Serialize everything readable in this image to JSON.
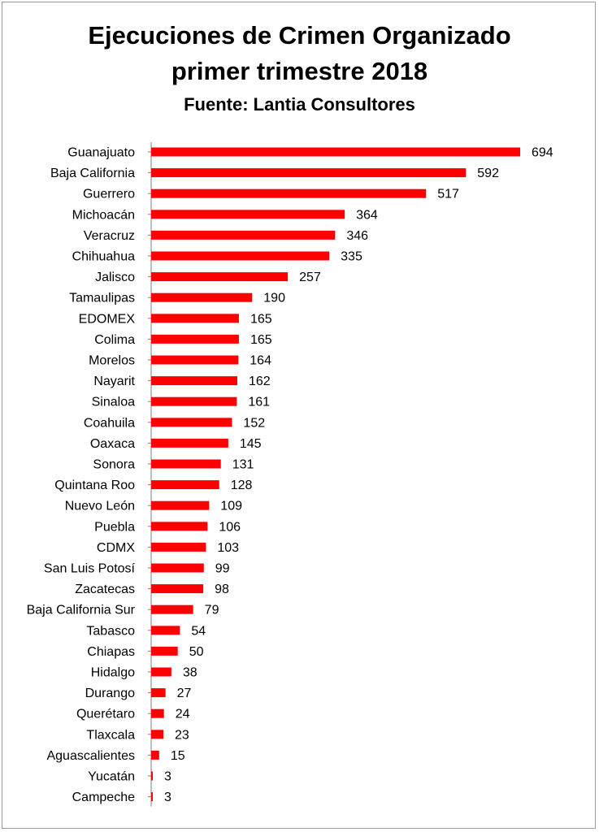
{
  "chart_data": {
    "type": "bar",
    "orientation": "horizontal",
    "title": "Ejecuciones de Crimen Organizado",
    "title_line2": "primer trimestre 2018",
    "subtitle": "Fuente: Lantia Consultores",
    "categories": [
      "Guanajuato",
      "Baja California",
      "Guerrero",
      "Michoacán",
      "Veracruz",
      "Chihuahua",
      "Jalisco",
      "Tamaulipas",
      "EDOMEX",
      "Colima",
      "Morelos",
      "Nayarit",
      "Sinaloa",
      "Coahuila",
      "Oaxaca",
      "Sonora",
      "Quintana Roo",
      "Nuevo León",
      "Puebla",
      "CDMX",
      "San Luis Potosí",
      "Zacatecas",
      "Baja California Sur",
      "Tabasco",
      "Chiapas",
      "Hidalgo",
      "Durango",
      "Querétaro",
      "Tlaxcala",
      "Aguascalientes",
      "Yucatán",
      "Campeche"
    ],
    "values": [
      694,
      592,
      517,
      364,
      346,
      335,
      257,
      190,
      165,
      165,
      164,
      162,
      161,
      152,
      145,
      131,
      128,
      109,
      106,
      103,
      99,
      98,
      79,
      54,
      50,
      38,
      27,
      24,
      23,
      15,
      3,
      3
    ],
    "xlim": [
      0,
      694
    ],
    "bar_color": "#ff0000",
    "grid": false,
    "legend": false
  }
}
